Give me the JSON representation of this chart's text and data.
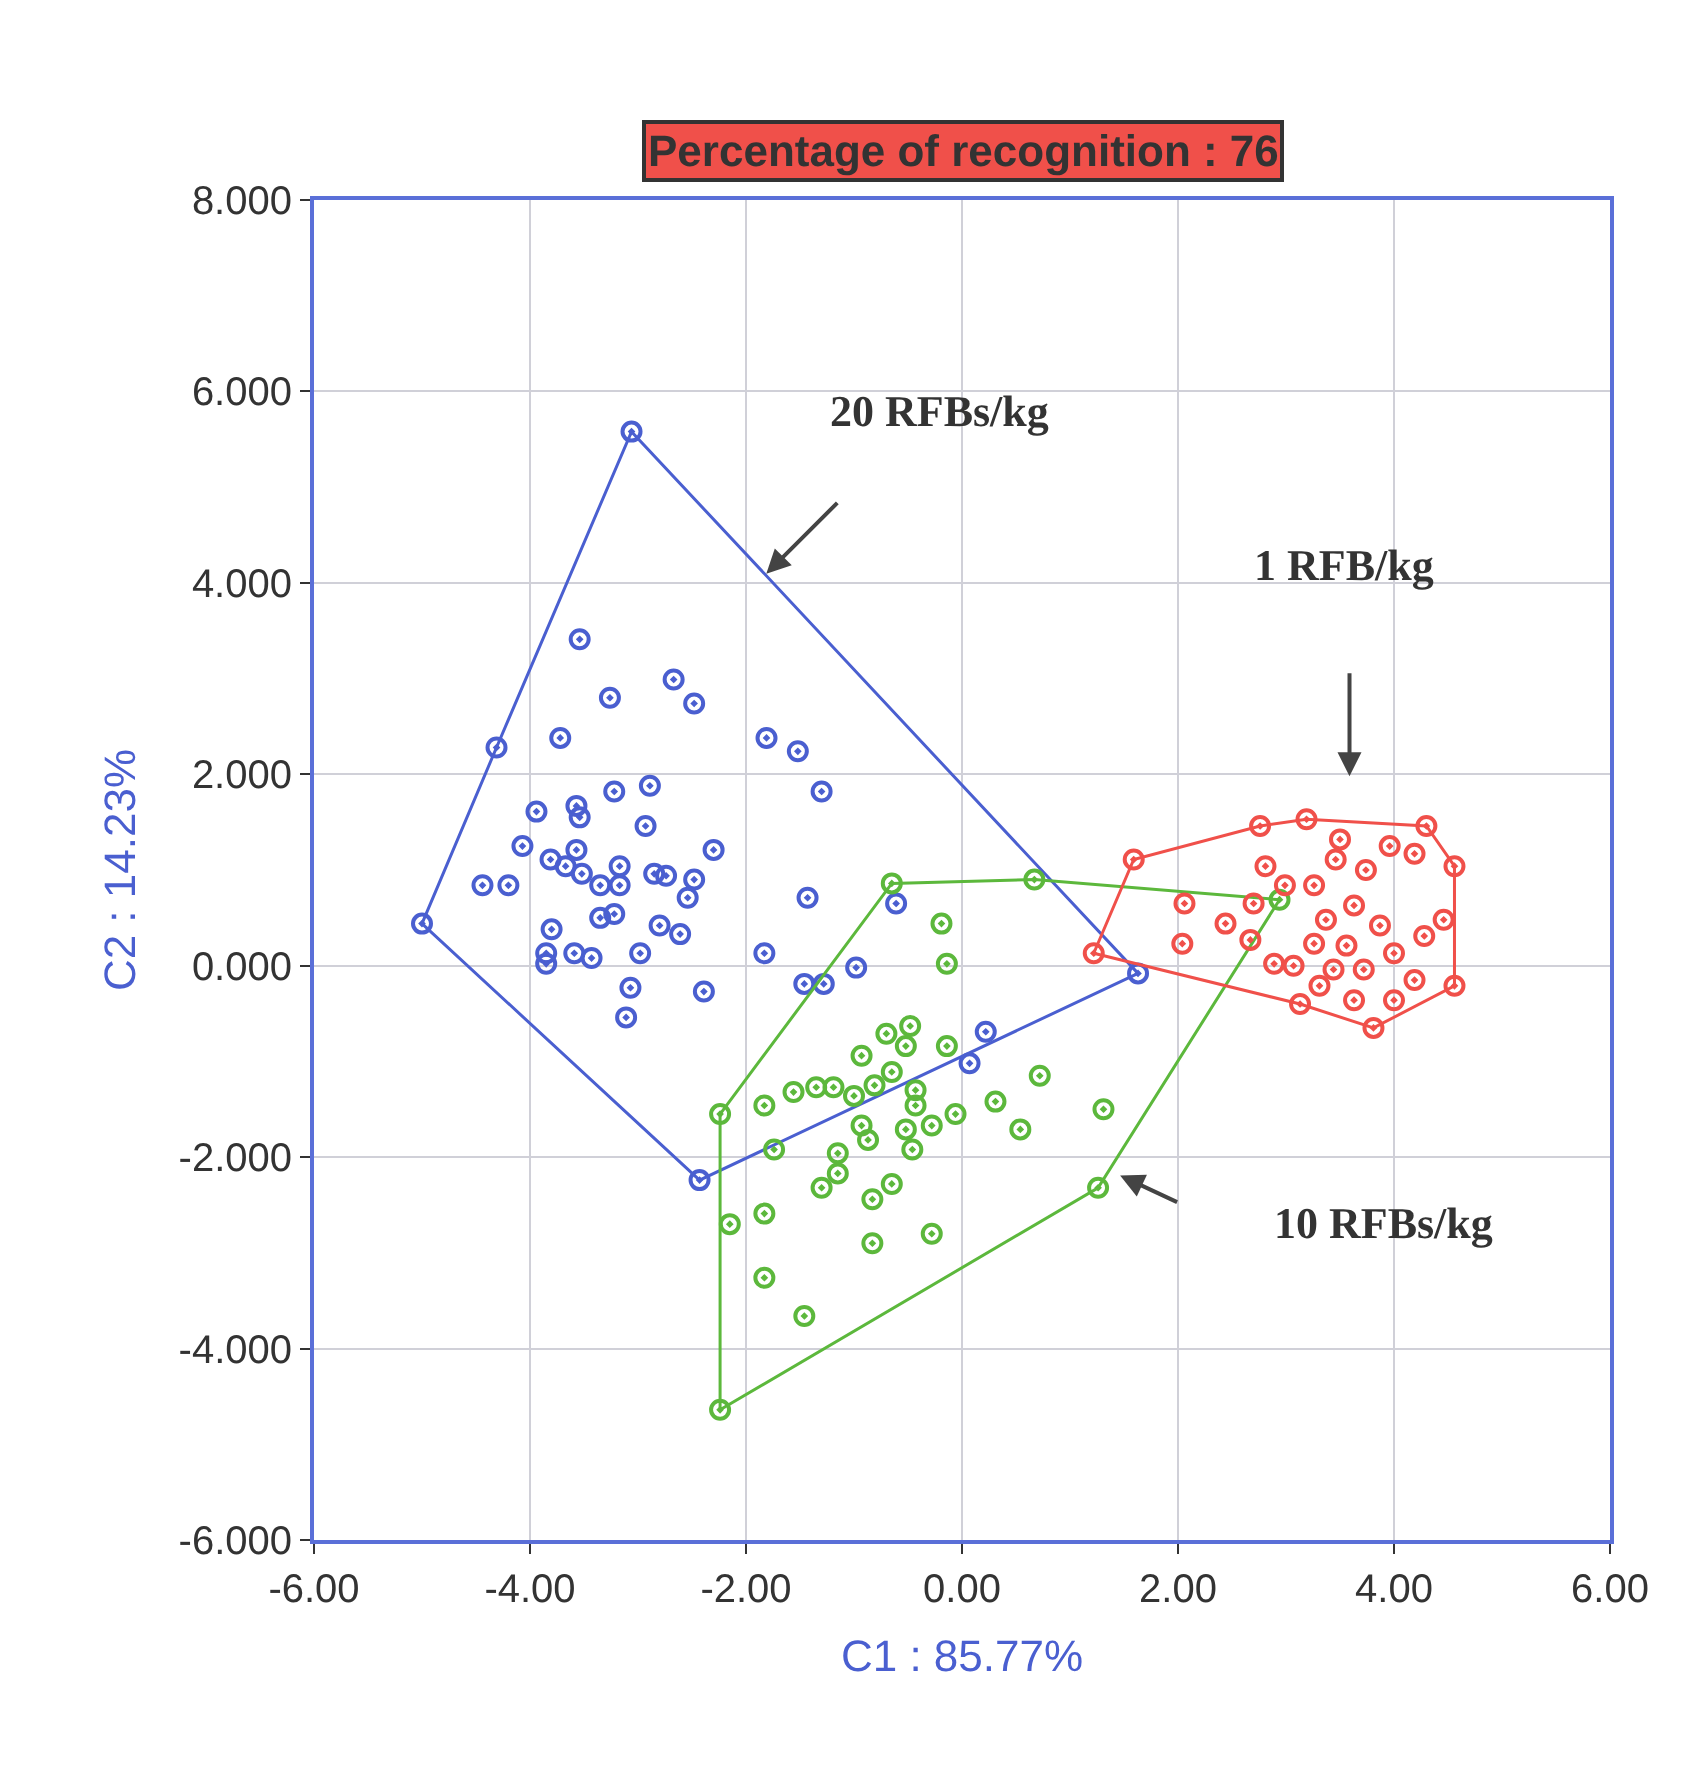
{
  "chart_data": {
    "type": "scatter",
    "title": "Percentage of recognition : 76",
    "xlabel": "C1 : 85.77%",
    "ylabel": "C2 : 14.23%",
    "xlim": [
      -6,
      6
    ],
    "ylim": [
      -6,
      8
    ],
    "xticks": [
      {
        "value": -6,
        "label": "-6.00"
      },
      {
        "value": -4,
        "label": "-4.00"
      },
      {
        "value": -2,
        "label": "-2.00"
      },
      {
        "value": 0,
        "label": "0.00"
      },
      {
        "value": 2,
        "label": "2.00"
      },
      {
        "value": 4,
        "label": "4.00"
      },
      {
        "value": 6,
        "label": "6.00"
      }
    ],
    "yticks": [
      {
        "value": -6,
        "label": "-6.000"
      },
      {
        "value": -4,
        "label": "-4.000"
      },
      {
        "value": -2,
        "label": "-2.000"
      },
      {
        "value": 0,
        "label": "0.000"
      },
      {
        "value": 2,
        "label": "2.000"
      },
      {
        "value": 4,
        "label": "4.000"
      },
      {
        "value": 6,
        "label": "6.000"
      },
      {
        "value": 8,
        "label": "8.000"
      }
    ],
    "grid": true,
    "marker": "circle",
    "series": [
      {
        "color": "#4a5fd0",
        "x": [
          -3.06,
          1.63,
          -2.43,
          -5.0,
          -4.31,
          -3.54,
          -3.26,
          -2.67,
          -2.48,
          -3.72,
          -1.81,
          -1.52,
          -1.3,
          -3.22,
          -2.89,
          -3.94,
          -3.57,
          -3.54,
          -2.93,
          -4.07,
          -3.57,
          -3.81,
          -3.67,
          -3.52,
          -3.35,
          -3.17,
          -3.17,
          -2.85,
          -2.74,
          -2.48,
          -2.3,
          -2.54,
          -4.44,
          -4.2,
          -3.35,
          -3.22,
          -2.8,
          -2.61,
          -3.8,
          -3.85,
          -3.85,
          -3.59,
          -3.43,
          -2.98,
          -1.83,
          -1.43,
          -3.07,
          -2.39,
          -3.11,
          -1.46,
          -1.28,
          -0.98,
          -0.61,
          0.22,
          0.07
        ],
        "values": [
          5.58,
          -0.08,
          -2.24,
          0.44,
          2.28,
          3.41,
          2.8,
          2.99,
          2.74,
          2.38,
          2.38,
          2.24,
          1.82,
          1.82,
          1.88,
          1.61,
          1.67,
          1.55,
          1.46,
          1.25,
          1.21,
          1.11,
          1.04,
          0.96,
          0.84,
          0.84,
          1.04,
          0.96,
          0.94,
          0.9,
          1.21,
          0.71,
          0.84,
          0.84,
          0.5,
          0.54,
          0.42,
          0.33,
          0.38,
          0.13,
          0.02,
          0.13,
          0.08,
          0.13,
          0.13,
          0.71,
          -0.23,
          -0.27,
          -0.54,
          -0.19,
          -0.19,
          -0.02,
          0.65,
          -0.69,
          -1.02
        ]
      },
      {
        "type": "line",
        "marker": "none",
        "color": "#4a5fd0",
        "x": [
          -5.0,
          -4.31,
          -3.06,
          1.63
        ],
        "values": [
          0.44,
          2.28,
          5.58,
          -0.08
        ]
      },
      {
        "type": "line",
        "marker": "none",
        "color": "#4a5fd0",
        "x": [
          -5.0,
          -2.43,
          1.63
        ],
        "values": [
          0.44,
          -2.24,
          -0.08
        ]
      },
      {
        "color": "#5cb83c",
        "x": [
          -0.65,
          0.67,
          2.94,
          1.26,
          -2.24,
          -2.24,
          -0.19,
          -0.14,
          -0.7,
          -0.48,
          -0.52,
          -0.14,
          -0.93,
          -0.65,
          0.72,
          -1.56,
          -1.35,
          -1.19,
          -1.83,
          -1.0,
          -0.81,
          -0.43,
          -0.43,
          0.31,
          1.31,
          -0.06,
          -0.28,
          -0.93,
          -0.52,
          0.54,
          -0.87,
          -0.46,
          -1.74,
          -1.15,
          -1.15,
          -1.3,
          -0.65,
          -0.83,
          -1.83,
          -2.15,
          -0.28,
          -0.83,
          -1.83,
          -1.46
        ],
        "values": [
          0.86,
          0.9,
          0.69,
          -2.32,
          -4.64,
          -1.55,
          0.44,
          0.02,
          -0.71,
          -0.63,
          -0.84,
          -0.84,
          -0.94,
          -1.11,
          -1.15,
          -1.32,
          -1.27,
          -1.27,
          -1.46,
          -1.36,
          -1.25,
          -1.3,
          -1.46,
          -1.42,
          -1.5,
          -1.55,
          -1.67,
          -1.67,
          -1.71,
          -1.71,
          -1.82,
          -1.92,
          -1.92,
          -1.96,
          -2.17,
          -2.32,
          -2.28,
          -2.44,
          -2.59,
          -2.7,
          -2.8,
          -2.9,
          -3.26,
          -3.66
        ]
      },
      {
        "type": "line",
        "marker": "none",
        "color": "#5cb83c",
        "x": [
          -2.24,
          -0.65,
          0.67,
          2.94
        ],
        "values": [
          -1.55,
          0.86,
          0.9,
          0.69
        ]
      },
      {
        "type": "line",
        "marker": "none",
        "color": "#5cb83c",
        "x": [
          -2.24,
          -2.24,
          1.26,
          2.94
        ],
        "values": [
          -1.55,
          -4.64,
          -2.32,
          0.69
        ]
      },
      {
        "color": "#f0504a",
        "x": [
          1.59,
          2.76,
          3.19,
          4.3,
          4.56,
          4.56,
          3.81,
          3.13,
          1.22,
          2.06,
          2.44,
          2.04,
          2.67,
          2.7,
          2.89,
          2.81,
          2.99,
          3.5,
          3.46,
          3.74,
          3.96,
          4.19,
          3.26,
          3.63,
          3.37,
          3.87,
          4.28,
          4.46,
          3.26,
          3.56,
          4.0,
          3.07,
          3.44,
          3.72,
          3.63,
          4.0,
          4.19,
          3.31
        ],
        "values": [
          1.11,
          1.46,
          1.53,
          1.46,
          1.04,
          -0.21,
          -0.65,
          -0.4,
          0.13,
          0.65,
          0.44,
          0.23,
          0.27,
          0.65,
          0.02,
          1.04,
          0.84,
          1.32,
          1.11,
          1.0,
          1.25,
          1.17,
          0.84,
          0.63,
          0.48,
          0.42,
          0.31,
          0.48,
          0.23,
          0.21,
          0.13,
          0.0,
          -0.04,
          -0.04,
          -0.36,
          -0.36,
          -0.15,
          -0.21
        ]
      },
      {
        "type": "line",
        "marker": "none",
        "color": "#f0504a",
        "x": [
          1.22,
          1.59,
          2.76,
          3.19,
          4.3,
          4.56
        ],
        "values": [
          0.13,
          1.11,
          1.46,
          1.53,
          1.46,
          1.04
        ]
      },
      {
        "type": "line",
        "marker": "none",
        "color": "#f0504a",
        "x": [
          1.22,
          3.13,
          3.81,
          4.56,
          4.56
        ],
        "values": [
          0.13,
          -0.4,
          -0.65,
          -0.21,
          1.04
        ]
      }
    ],
    "annotations": [
      "20 RFBs/kg",
      "1 RFB/kg",
      "10 RFBs/kg"
    ]
  }
}
